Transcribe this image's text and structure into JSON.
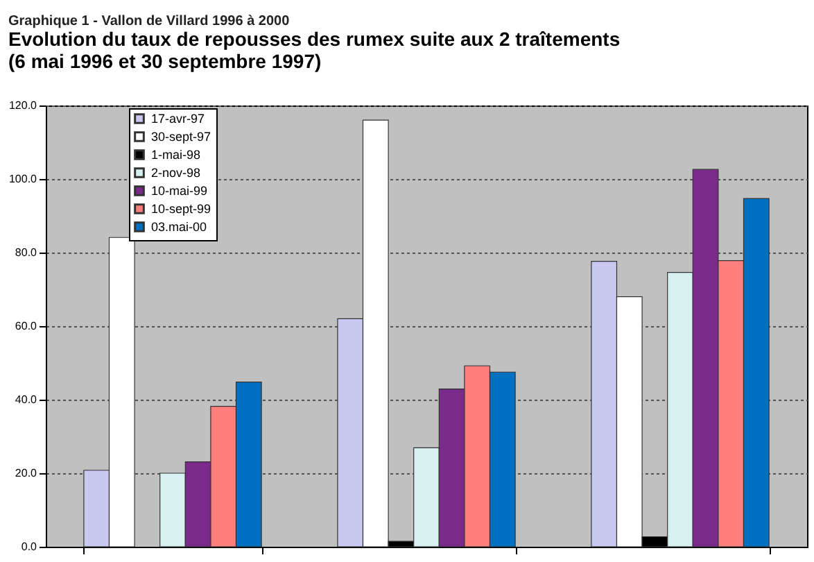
{
  "chart_data": {
    "type": "bar",
    "subtitle": "Graphique 1 - Vallon de Villard 1996 à 2000",
    "title": "Evolution du taux de repousses des rumex suite aux 2 traîtements\n(6 mai 1996 et 30 septembre 1997)",
    "categories": [
      null,
      null,
      null
    ],
    "series": [
      {
        "name": "17-avr-97",
        "color": "#c8c8f0",
        "values": [
          20.8,
          62.0,
          77.6
        ]
      },
      {
        "name": "30-sept-97",
        "color": "#ffffff",
        "values": [
          84.1,
          116.0,
          68.0
        ]
      },
      {
        "name": "1-mai-98",
        "color": "#000000",
        "values": [
          null,
          1.5,
          2.7
        ]
      },
      {
        "name": "2-nov-98",
        "color": "#d8f0f0",
        "values": [
          20.0,
          26.9,
          74.6
        ]
      },
      {
        "name": "10-mai-99",
        "color": "#7a2a8a",
        "values": [
          23.1,
          42.9,
          102.6
        ]
      },
      {
        "name": "10-sept-99",
        "color": "#ff7f7f",
        "values": [
          38.2,
          49.2,
          77.8
        ]
      },
      {
        "name": "03.mai-00",
        "color": "#0070c0",
        "values": [
          44.8,
          47.5,
          94.7
        ]
      }
    ],
    "ylim": [
      0,
      120
    ],
    "yticks": [
      {
        "value": 0,
        "label": "0.0"
      },
      {
        "value": 20,
        "label": "20.0"
      },
      {
        "value": 40,
        "label": "40.0"
      },
      {
        "value": 60,
        "label": "60.0"
      },
      {
        "value": 80,
        "label": "80.0"
      },
      {
        "value": 100,
        "label": "100.0"
      },
      {
        "value": 120,
        "label": "120.0"
      }
    ],
    "tick_labels": "y",
    "grid": "y",
    "legend": "top left"
  }
}
